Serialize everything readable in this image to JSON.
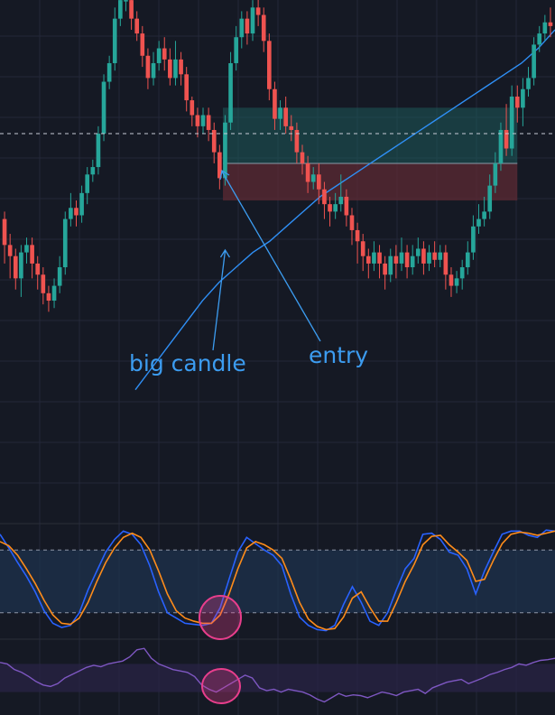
{
  "theme": {
    "background": "#151924",
    "grid": "#232838",
    "bull": "#26a69a",
    "bear": "#ef5350",
    "ma": "#2f8ff5",
    "stoch_k": "#2962ff",
    "stoch_d": "#ff8c1a",
    "rsi": "#7e57c2",
    "annotation": "#3c9cf0",
    "profit_zone": "#1e5a5a",
    "loss_zone": "#5c2a33",
    "highlight_circle": "#e83e8c"
  },
  "annotations": {
    "big_candle": "big candle",
    "entry": "entry"
  },
  "chart_data": [
    {
      "type": "candlestick",
      "title": "",
      "ylim": [
        0,
        100
      ],
      "candles": [
        [
          40,
          33,
          28,
          42
        ],
        [
          33,
          30,
          24,
          36
        ],
        [
          30,
          24,
          21,
          32
        ],
        [
          24,
          31,
          19,
          33
        ],
        [
          31,
          33,
          28,
          35
        ],
        [
          33,
          28,
          24,
          35
        ],
        [
          28,
          25,
          21,
          30
        ],
        [
          25,
          20,
          17,
          27
        ],
        [
          20,
          18,
          15,
          22
        ],
        [
          18,
          22,
          16,
          24
        ],
        [
          22,
          27,
          20,
          30
        ],
        [
          27,
          40,
          25,
          42
        ],
        [
          40,
          43,
          38,
          47
        ],
        [
          43,
          41,
          38,
          45
        ],
        [
          41,
          47,
          39,
          49
        ],
        [
          47,
          52,
          44,
          54
        ],
        [
          52,
          54,
          50,
          56
        ],
        [
          54,
          63,
          52,
          65
        ],
        [
          63,
          77,
          61,
          79
        ],
        [
          77,
          82,
          75,
          84
        ],
        [
          82,
          94,
          80,
          97
        ],
        [
          94,
          99,
          92,
          100
        ],
        [
          99,
          99,
          96,
          100
        ],
        [
          99,
          94,
          91,
          100
        ],
        [
          94,
          90,
          88,
          96
        ],
        [
          90,
          84,
          81,
          92
        ],
        [
          84,
          78,
          75,
          86
        ],
        [
          78,
          82,
          76,
          85
        ],
        [
          82,
          86,
          80,
          88
        ],
        [
          86,
          83,
          80,
          89
        ],
        [
          83,
          78,
          76,
          86
        ],
        [
          78,
          83,
          76,
          88
        ],
        [
          83,
          79,
          76,
          85
        ],
        [
          79,
          72,
          69,
          81
        ],
        [
          72,
          68,
          65,
          73
        ],
        [
          68,
          65,
          62,
          70
        ],
        [
          65,
          68,
          63,
          70
        ],
        [
          68,
          64,
          61,
          70
        ],
        [
          64,
          58,
          55,
          66
        ],
        [
          58,
          51,
          48,
          60
        ],
        [
          51,
          66,
          49,
          68
        ],
        [
          66,
          82,
          64,
          85
        ],
        [
          82,
          89,
          80,
          92
        ],
        [
          89,
          94,
          86,
          96
        ],
        [
          94,
          90,
          87,
          96
        ],
        [
          90,
          97,
          88,
          99
        ],
        [
          97,
          95,
          92,
          100
        ],
        [
          95,
          88,
          85,
          97
        ],
        [
          88,
          75,
          72,
          90
        ],
        [
          75,
          67,
          64,
          77
        ],
        [
          67,
          70,
          64,
          72
        ],
        [
          70,
          65,
          63,
          73
        ],
        [
          65,
          64,
          61,
          68
        ],
        [
          64,
          58,
          55,
          66
        ],
        [
          58,
          55,
          52,
          60
        ],
        [
          55,
          50,
          47,
          57
        ],
        [
          50,
          52,
          48,
          54
        ],
        [
          52,
          48,
          44,
          55
        ],
        [
          48,
          44,
          40,
          50
        ],
        [
          44,
          42,
          38,
          46
        ],
        [
          42,
          44,
          40,
          47
        ],
        [
          44,
          46,
          42,
          52
        ],
        [
          46,
          41,
          38,
          48
        ],
        [
          41,
          37,
          33,
          43
        ],
        [
          37,
          34,
          28,
          39
        ],
        [
          34,
          30,
          26,
          36
        ],
        [
          30,
          28,
          24,
          32
        ],
        [
          28,
          31,
          26,
          34
        ],
        [
          31,
          28,
          24,
          33
        ],
        [
          28,
          25,
          21,
          30
        ],
        [
          25,
          30,
          23,
          32
        ],
        [
          30,
          28,
          24,
          33
        ],
        [
          28,
          31,
          26,
          35
        ],
        [
          31,
          27,
          24,
          33
        ],
        [
          27,
          30,
          25,
          33
        ],
        [
          30,
          32,
          28,
          35
        ],
        [
          32,
          28,
          25,
          34
        ],
        [
          28,
          31,
          26,
          33
        ],
        [
          31,
          29,
          27,
          34
        ],
        [
          29,
          31,
          27,
          33
        ],
        [
          31,
          25,
          21,
          33
        ],
        [
          25,
          22,
          19,
          27
        ],
        [
          22,
          24,
          20,
          26
        ],
        [
          24,
          27,
          21,
          29
        ],
        [
          27,
          31,
          25,
          34
        ],
        [
          31,
          38,
          29,
          41
        ],
        [
          38,
          40,
          36,
          44
        ],
        [
          40,
          42,
          38,
          46
        ],
        [
          42,
          49,
          40,
          52
        ],
        [
          49,
          55,
          47,
          58
        ],
        [
          55,
          64,
          53,
          66
        ],
        [
          64,
          59,
          57,
          71
        ],
        [
          59,
          73,
          57,
          76
        ],
        [
          73,
          70,
          66,
          76
        ],
        [
          70,
          75,
          65,
          78
        ],
        [
          75,
          78,
          73,
          81
        ],
        [
          78,
          87,
          76,
          89
        ],
        [
          87,
          90,
          85,
          92
        ],
        [
          90,
          93,
          88,
          95
        ],
        [
          93,
          92,
          89,
          97
        ]
      ],
      "moving_average": [
        -6,
        0,
        6,
        12,
        18,
        23,
        27,
        31,
        34,
        38,
        42,
        46,
        49,
        52,
        55,
        58,
        61,
        64,
        67,
        70,
        73,
        76,
        79,
        82,
        86,
        91
      ],
      "trade_box": {
        "entry": 55,
        "take_profit": 70,
        "stop_loss": 45,
        "start_candle": 40,
        "end_candle": 93
      }
    },
    {
      "type": "line",
      "title": "",
      "ylim": [
        0,
        100
      ],
      "band": [
        20,
        80
      ],
      "series": [
        {
          "values": [
            95,
            82,
            68,
            55,
            40,
            22,
            10,
            6,
            8,
            20,
            42,
            60,
            78,
            90,
            98,
            95,
            85,
            65,
            40,
            20,
            15,
            10,
            9,
            8,
            10,
            25,
            52,
            78,
            92,
            86,
            80,
            75,
            65,
            38,
            16,
            8,
            4,
            3,
            8,
            28,
            45,
            30,
            12,
            8,
            20,
            42,
            62,
            72,
            95,
            96,
            90,
            78,
            75,
            62,
            38,
            60,
            78,
            95,
            98,
            98,
            94,
            92,
            99,
            98
          ]
        },
        {
          "values": [
            88,
            84,
            75,
            62,
            48,
            32,
            18,
            10,
            9,
            15,
            30,
            50,
            68,
            82,
            92,
            96,
            92,
            80,
            60,
            38,
            22,
            15,
            12,
            10,
            10,
            18,
            38,
            62,
            82,
            88,
            85,
            80,
            72,
            52,
            30,
            14,
            7,
            4,
            5,
            16,
            34,
            40,
            25,
            12,
            12,
            30,
            50,
            66,
            85,
            93,
            94,
            85,
            78,
            70,
            50,
            52,
            70,
            86,
            95,
            97,
            96,
            94,
            96,
            98
          ]
        }
      ]
    },
    {
      "type": "line",
      "title": "",
      "ylim": [
        0,
        100
      ],
      "band": [
        30,
        70
      ],
      "series": [
        {
          "values": [
            72,
            70,
            62,
            58,
            52,
            45,
            40,
            38,
            42,
            50,
            55,
            60,
            65,
            68,
            66,
            70,
            72,
            74,
            80,
            90,
            92,
            78,
            70,
            66,
            62,
            60,
            58,
            52,
            40,
            34,
            30,
            36,
            42,
            48,
            54,
            50,
            36,
            32,
            34,
            30,
            34,
            32,
            30,
            26,
            20,
            16,
            22,
            28,
            24,
            26,
            25,
            22,
            26,
            30,
            28,
            25,
            30,
            32,
            34,
            28,
            36,
            40,
            44,
            46,
            48,
            42,
            46,
            50,
            55,
            58,
            62,
            65,
            70,
            68,
            72,
            75,
            76,
            78
          ]
        }
      ]
    }
  ]
}
